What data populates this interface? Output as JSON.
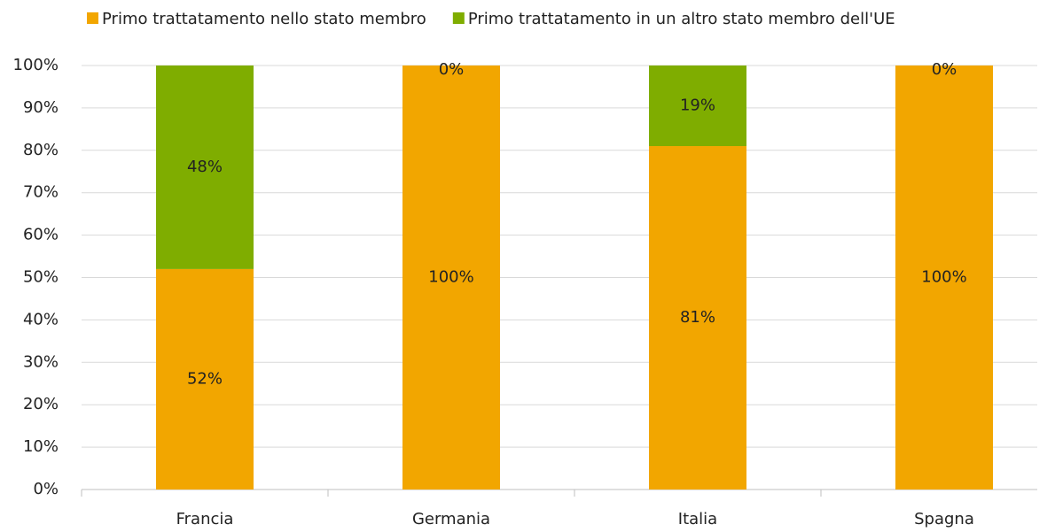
{
  "chart_data": {
    "type": "stacked_bar",
    "categories": [
      "Francia",
      "Germania",
      "Italia",
      "Spagna"
    ],
    "series": [
      {
        "name": "Primo trattatamento nello stato membro",
        "color": "#f2a600",
        "values": [
          52,
          100,
          81,
          100
        ],
        "value_labels": [
          "52%",
          "100%",
          "81%",
          "100%"
        ]
      },
      {
        "name": "Primo trattatamento in un altro stato membro dell'UE",
        "color": "#7fad00",
        "values": [
          48,
          0,
          19,
          0
        ],
        "value_labels": [
          "48%",
          "0%",
          "19%",
          "0%"
        ]
      }
    ],
    "ylim": [
      0,
      100
    ],
    "yticks": [
      {
        "value": 0,
        "label": "0%"
      },
      {
        "value": 10,
        "label": "10%"
      },
      {
        "value": 20,
        "label": "20%"
      },
      {
        "value": 30,
        "label": "30%"
      },
      {
        "value": 40,
        "label": "40%"
      },
      {
        "value": 50,
        "label": "50%"
      },
      {
        "value": 60,
        "label": "60%"
      },
      {
        "value": 70,
        "label": "70%"
      },
      {
        "value": 80,
        "label": "80%"
      },
      {
        "value": 90,
        "label": "90%"
      },
      {
        "value": 100,
        "label": "100%"
      }
    ],
    "grid": true,
    "legend": "top"
  }
}
